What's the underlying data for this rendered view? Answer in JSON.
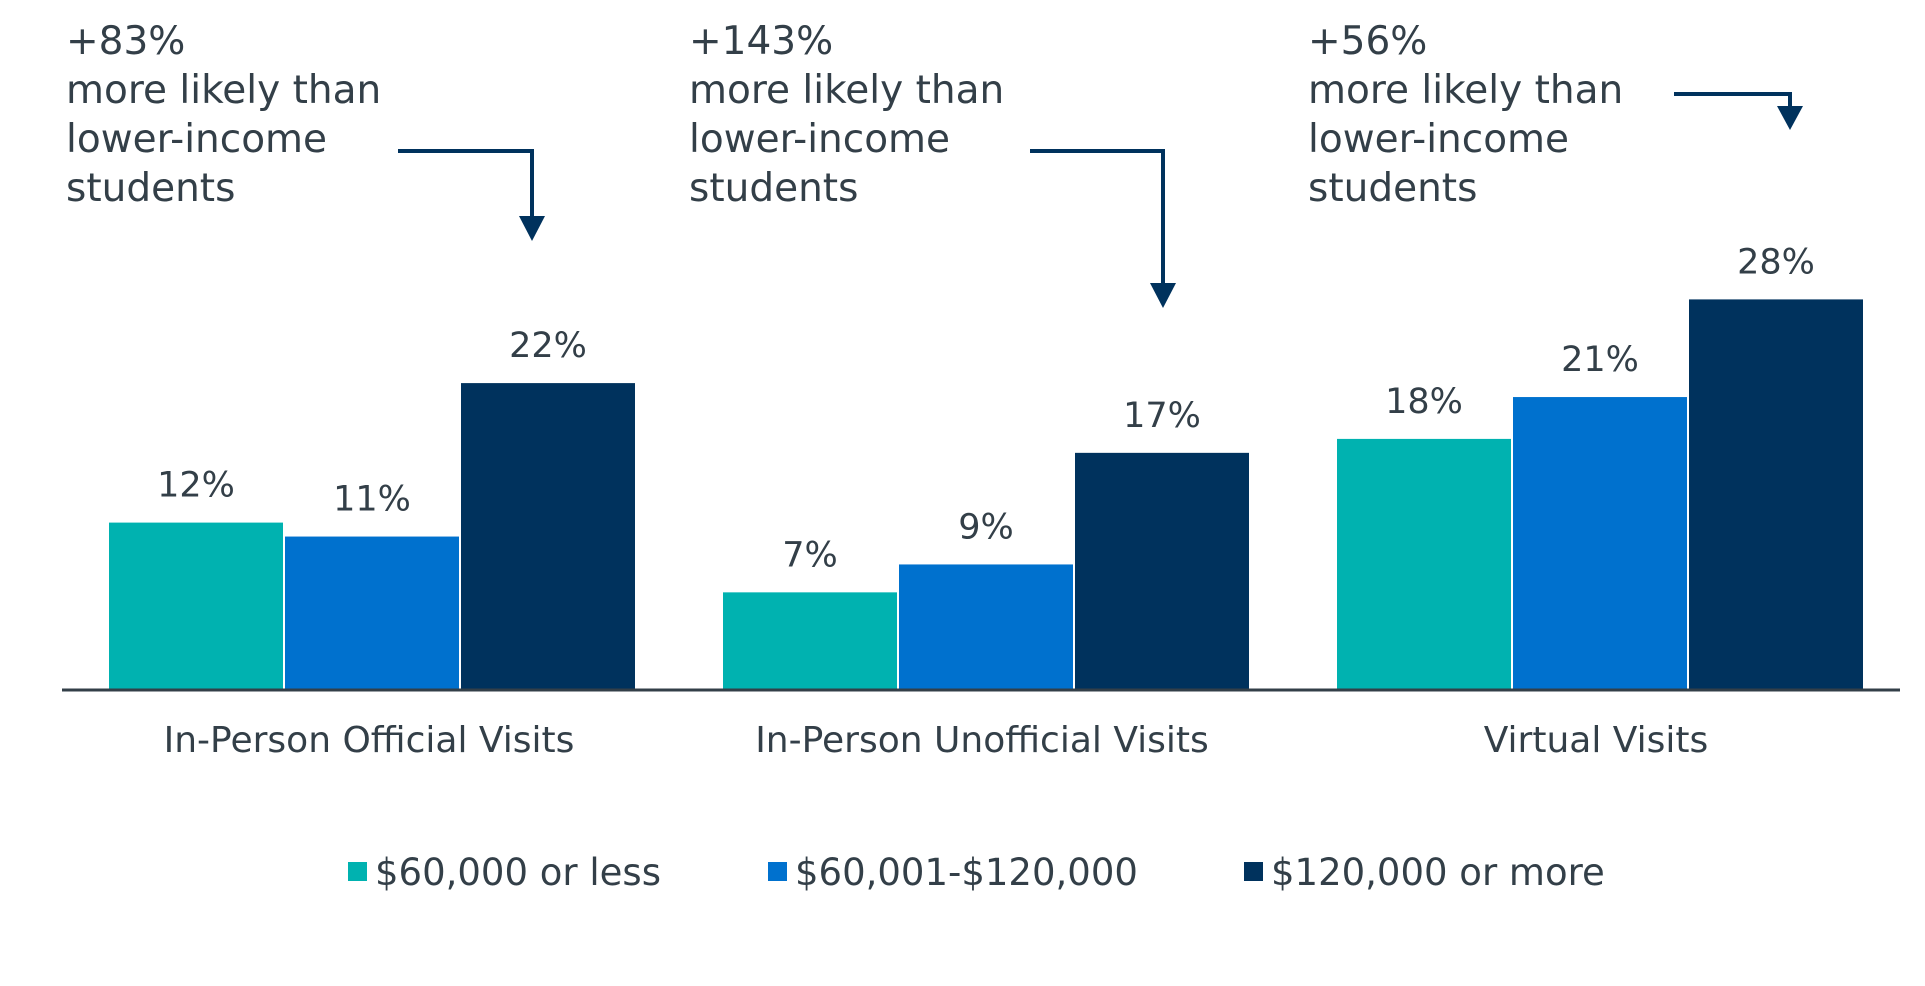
{
  "chart_data": {
    "type": "bar",
    "categories": [
      "In-Person Official Visits",
      "In-Person Unofficial Visits",
      "Virtual Visits"
    ],
    "series": [
      {
        "name": "$60,000 or less",
        "color": "#00b2b0",
        "values": [
          12,
          7,
          18
        ],
        "labels": [
          "12%",
          "7%",
          "18%"
        ]
      },
      {
        "name": "$60,001-$120,000",
        "color": "#0071ce",
        "values": [
          11,
          9,
          21
        ],
        "labels": [
          "11%",
          "9%",
          "21%"
        ]
      },
      {
        "name": "$120,000 or more",
        "color": "#00325d",
        "values": [
          22,
          17,
          28
        ],
        "labels": [
          "22%",
          "17%",
          "28%"
        ]
      }
    ],
    "ylim": [
      0,
      32
    ],
    "annotations": [
      {
        "category": "In-Person Official Visits",
        "lines": [
          "+83%",
          "more likely than",
          "lower-income",
          "students"
        ]
      },
      {
        "category": "In-Person Unofficial Visits",
        "lines": [
          "+143%",
          "more likely than",
          "lower-income",
          "students"
        ]
      },
      {
        "category": "Virtual Visits",
        "lines": [
          "+56%",
          "more likely than",
          "lower-income",
          "students"
        ]
      }
    ],
    "annotation_arrow_color": "#00325d",
    "axis_color": "#333f48",
    "legend_position": "bottom",
    "grid": false
  }
}
